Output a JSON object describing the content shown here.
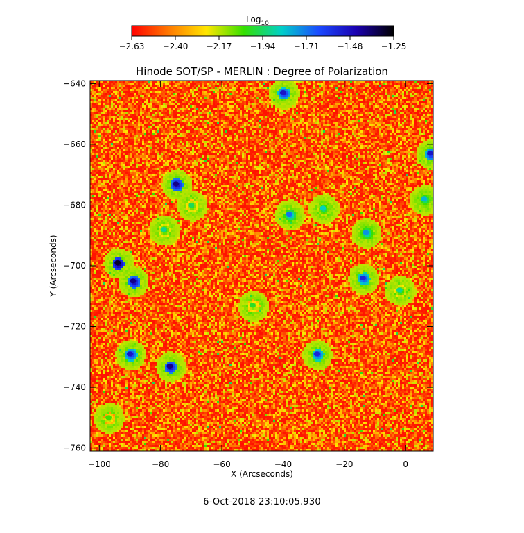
{
  "colors": {
    "background": "#ffffff",
    "axis": "#000000",
    "colormap": [
      "#ff0000",
      "#ff7a00",
      "#ffe600",
      "#34e000",
      "#00d0c8",
      "#1a4aff",
      "#1a00b0",
      "#000000"
    ]
  },
  "chart_data": {
    "type": "heatmap",
    "title": "Hinode SOT/SP - MERLIN : Degree of Polarization",
    "xlabel": "X (Arcseconds)",
    "ylabel": "Y (Arcseconds)",
    "xlim": [
      -103,
      9
    ],
    "ylim": [
      -761,
      -639
    ],
    "x_ticks": [
      -100,
      -80,
      -60,
      -40,
      -20,
      0
    ],
    "y_ticks": [
      -640,
      -660,
      -680,
      -700,
      -720,
      -740,
      -760
    ],
    "x_tick_labels": [
      "−100",
      "−80",
      "−60",
      "−40",
      "−20",
      "0"
    ],
    "y_tick_labels": [
      "−640",
      "−660",
      "−680",
      "−700",
      "−720",
      "−740",
      "−760"
    ],
    "colorbar": {
      "title": "Log",
      "title_subscript": "10",
      "range": [
        -2.63,
        -1.25
      ],
      "ticks": [
        -2.63,
        -2.4,
        -2.17,
        -1.94,
        -1.71,
        -1.48,
        -1.25
      ],
      "tick_labels": [
        "−2.63",
        "−2.40",
        "−2.17",
        "−1.94",
        "−1.71",
        "−1.48",
        "−1.25"
      ]
    },
    "features": [
      {
        "x": -75,
        "y": -673,
        "value": -1.4
      },
      {
        "x": -94,
        "y": -699,
        "value": -1.3
      },
      {
        "x": -89,
        "y": -705,
        "value": -1.4
      },
      {
        "x": -77,
        "y": -733,
        "value": -1.4
      },
      {
        "x": -90,
        "y": -729,
        "value": -1.5
      },
      {
        "x": -40,
        "y": -643,
        "value": -1.5
      },
      {
        "x": -14,
        "y": -704,
        "value": -1.55
      },
      {
        "x": 8,
        "y": -663,
        "value": -1.5
      },
      {
        "x": -29,
        "y": -729,
        "value": -1.55
      },
      {
        "x": -38,
        "y": -683,
        "value": -1.7
      },
      {
        "x": 6,
        "y": -678,
        "value": -1.8
      },
      {
        "x": -2,
        "y": -708,
        "value": -1.9
      },
      {
        "x": -27,
        "y": -681,
        "value": -1.85
      },
      {
        "x": -13,
        "y": -689,
        "value": -1.75
      },
      {
        "x": -79,
        "y": -688,
        "value": -1.9
      },
      {
        "x": -70,
        "y": -680,
        "value": -1.95
      },
      {
        "x": -50,
        "y": -713,
        "value": -2.0
      },
      {
        "x": -97,
        "y": -750,
        "value": -2.05
      }
    ]
  },
  "footer": {
    "timestamp": "6-Oct-2018 23:10:05.930"
  }
}
